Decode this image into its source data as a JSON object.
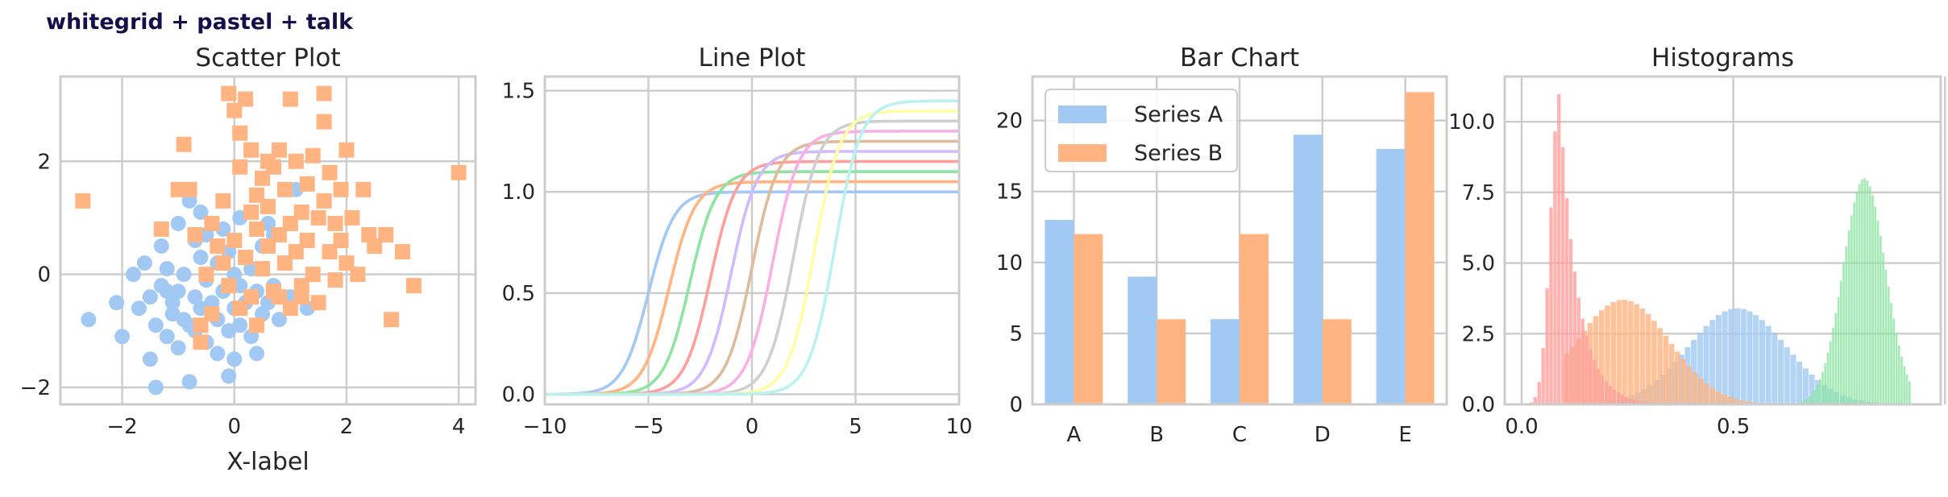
{
  "figure": {
    "suptitle": "whitegrid + pastel + talk",
    "colors": {
      "blue": "#a1c9f4",
      "orange": "#ffb482",
      "green": "#8de5a1",
      "red": "#ff9f9b",
      "purple": "#d0bbff",
      "brown": "#debb9b",
      "pink": "#fab0e4",
      "gray": "#cfcfcf",
      "yellow": "#fffea3",
      "cyan": "#b9f2f0"
    }
  },
  "chart_data": [
    {
      "type": "scatter",
      "title": "Scatter Plot",
      "xlabel": "X-label",
      "ylabel": "",
      "xlim": [
        -3.1,
        4.3
      ],
      "ylim": [
        -2.3,
        3.5
      ],
      "xticks": [
        -2,
        0,
        2,
        4
      ],
      "yticks": [
        -2,
        0,
        2
      ],
      "grid": true,
      "series": [
        {
          "marker": "circle",
          "color": "#a1c9f4",
          "points": [
            [
              -2.6,
              -0.8
            ],
            [
              -2.1,
              -0.5
            ],
            [
              -2.0,
              -1.1
            ],
            [
              -1.8,
              0.0
            ],
            [
              -1.7,
              -0.6
            ],
            [
              -1.6,
              0.2
            ],
            [
              -1.5,
              -1.5
            ],
            [
              -1.5,
              -0.4
            ],
            [
              -1.4,
              -2.0
            ],
            [
              -1.4,
              -0.9
            ],
            [
              -1.3,
              0.5
            ],
            [
              -1.3,
              -0.2
            ],
            [
              -1.2,
              -1.1
            ],
            [
              -1.2,
              0.1
            ],
            [
              -1.1,
              -0.5
            ],
            [
              -1.1,
              -0.7
            ],
            [
              -1.0,
              0.9
            ],
            [
              -1.0,
              -1.3
            ],
            [
              -1.0,
              -0.3
            ],
            [
              -0.9,
              0.0
            ],
            [
              -0.9,
              -0.8
            ],
            [
              -0.8,
              -1.9
            ],
            [
              -0.8,
              -0.9
            ],
            [
              -0.8,
              1.3
            ],
            [
              -0.7,
              0.6
            ],
            [
              -0.7,
              -0.4
            ],
            [
              -0.7,
              -1.0
            ],
            [
              -0.6,
              1.1
            ],
            [
              -0.6,
              0.3
            ],
            [
              -0.6,
              -0.6
            ],
            [
              -0.5,
              -0.1
            ],
            [
              -0.5,
              -1.2
            ],
            [
              -0.5,
              0.7
            ],
            [
              -0.4,
              -0.5
            ],
            [
              -0.3,
              -0.8
            ],
            [
              -0.3,
              0.2
            ],
            [
              -0.3,
              -1.4
            ],
            [
              -0.2,
              0.8
            ],
            [
              -0.2,
              -0.3
            ],
            [
              -0.1,
              -1.0
            ],
            [
              -0.1,
              0.4
            ],
            [
              0.0,
              -0.6
            ],
            [
              0.0,
              0.0
            ],
            [
              0.0,
              -1.5
            ],
            [
              0.1,
              -0.2
            ],
            [
              0.1,
              1.0
            ],
            [
              0.1,
              -0.9
            ],
            [
              0.2,
              -0.5
            ],
            [
              0.2,
              0.3
            ],
            [
              0.3,
              -1.1
            ],
            [
              0.3,
              0.1
            ],
            [
              0.4,
              -0.3
            ],
            [
              0.4,
              -1.4
            ],
            [
              0.5,
              -0.7
            ],
            [
              0.5,
              0.5
            ],
            [
              0.6,
              -0.5
            ],
            [
              0.7,
              -0.2
            ],
            [
              0.7,
              0.7
            ],
            [
              0.8,
              -0.8
            ],
            [
              0.9,
              0.2
            ],
            [
              1.0,
              -0.4
            ],
            [
              1.1,
              1.5
            ],
            [
              1.3,
              -0.6
            ],
            [
              1.4,
              0.0
            ],
            [
              -0.1,
              -1.8
            ],
            [
              0.6,
              0.9
            ],
            [
              -1.2,
              -0.3
            ]
          ]
        },
        {
          "marker": "square",
          "color": "#ffb482",
          "points": [
            [
              -2.7,
              1.3
            ],
            [
              -1.3,
              0.8
            ],
            [
              -1.0,
              1.5
            ],
            [
              -0.9,
              2.3
            ],
            [
              -0.8,
              1.5
            ],
            [
              -0.7,
              0.7
            ],
            [
              -0.6,
              -0.9
            ],
            [
              -0.6,
              -1.2
            ],
            [
              -0.5,
              0.0
            ],
            [
              -0.4,
              0.9
            ],
            [
              -0.3,
              0.5
            ],
            [
              -0.2,
              0.2
            ],
            [
              -0.2,
              1.3
            ],
            [
              -0.1,
              3.2
            ],
            [
              -0.1,
              -0.2
            ],
            [
              0.0,
              2.9
            ],
            [
              0.0,
              0.6
            ],
            [
              0.1,
              2.5
            ],
            [
              0.1,
              1.9
            ],
            [
              0.1,
              -0.6
            ],
            [
              0.2,
              3.1
            ],
            [
              0.2,
              0.3
            ],
            [
              0.3,
              1.1
            ],
            [
              0.3,
              2.2
            ],
            [
              0.3,
              -0.4
            ],
            [
              0.4,
              0.8
            ],
            [
              0.4,
              1.4
            ],
            [
              0.4,
              -0.9
            ],
            [
              0.5,
              1.7
            ],
            [
              0.5,
              0.1
            ],
            [
              0.6,
              2.0
            ],
            [
              0.6,
              0.5
            ],
            [
              0.6,
              1.2
            ],
            [
              0.7,
              -0.3
            ],
            [
              0.7,
              1.9
            ],
            [
              0.8,
              0.7
            ],
            [
              0.8,
              2.2
            ],
            [
              0.9,
              0.2
            ],
            [
              0.9,
              1.5
            ],
            [
              1.0,
              -0.6
            ],
            [
              1.0,
              0.9
            ],
            [
              1.0,
              3.1
            ],
            [
              1.1,
              0.4
            ],
            [
              1.1,
              2.0
            ],
            [
              1.2,
              1.1
            ],
            [
              1.2,
              -0.2
            ],
            [
              1.3,
              1.6
            ],
            [
              1.3,
              0.6
            ],
            [
              1.4,
              2.1
            ],
            [
              1.4,
              0.0
            ],
            [
              1.5,
              1.0
            ],
            [
              1.5,
              -0.5
            ],
            [
              1.6,
              3.2
            ],
            [
              1.6,
              2.7
            ],
            [
              1.6,
              1.3
            ],
            [
              1.7,
              0.4
            ],
            [
              1.7,
              1.8
            ],
            [
              1.8,
              0.9
            ],
            [
              1.8,
              -0.1
            ],
            [
              1.9,
              1.5
            ],
            [
              1.9,
              0.6
            ],
            [
              2.0,
              2.2
            ],
            [
              2.0,
              0.2
            ],
            [
              2.1,
              1.0
            ],
            [
              2.2,
              0.0
            ],
            [
              2.3,
              1.5
            ],
            [
              2.4,
              0.7
            ],
            [
              2.5,
              0.5
            ],
            [
              2.7,
              0.7
            ],
            [
              2.8,
              -0.8
            ],
            [
              3.0,
              0.4
            ],
            [
              3.2,
              -0.2
            ],
            [
              4.0,
              1.8
            ],
            [
              -0.4,
              -0.7
            ],
            [
              0.8,
              -0.4
            ],
            [
              1.2,
              -0.4
            ]
          ]
        }
      ]
    },
    {
      "type": "line",
      "title": "Line Plot",
      "xlabel": "",
      "ylabel": "",
      "xlim": [
        -10,
        10
      ],
      "ylim": [
        -0.05,
        1.57
      ],
      "xticks": [
        -10,
        -5,
        0,
        5,
        10
      ],
      "yticks": [
        0.0,
        0.5,
        1.0,
        1.5
      ],
      "grid": true,
      "series": [
        {
          "center": -5,
          "plateau": 1.0,
          "color": "#a1c9f4"
        },
        {
          "center": -4,
          "plateau": 1.05,
          "color": "#ffb482"
        },
        {
          "center": -3,
          "plateau": 1.1,
          "color": "#8de5a1"
        },
        {
          "center": -2,
          "plateau": 1.15,
          "color": "#ff9f9b"
        },
        {
          "center": -1,
          "plateau": 1.2,
          "color": "#d0bbff"
        },
        {
          "center": 0,
          "plateau": 1.25,
          "color": "#debb9b"
        },
        {
          "center": 1,
          "plateau": 1.3,
          "color": "#fab0e4"
        },
        {
          "center": 2,
          "plateau": 1.35,
          "color": "#cfcfcf"
        },
        {
          "center": 3,
          "plateau": 1.4,
          "color": "#fffea3"
        },
        {
          "center": 4,
          "plateau": 1.45,
          "color": "#b9f2f0"
        }
      ]
    },
    {
      "type": "bar",
      "title": "Bar Chart",
      "xlabel": "",
      "ylabel": "",
      "categories": [
        "A",
        "B",
        "C",
        "D",
        "E"
      ],
      "ylim": [
        0,
        23.1
      ],
      "yticks": [
        0,
        5,
        10,
        15,
        20
      ],
      "grid": true,
      "legend": "top-left",
      "series": [
        {
          "name": "Series A",
          "values": [
            13,
            9,
            6,
            19,
            18
          ],
          "color": "#a1c9f4"
        },
        {
          "name": "Series B",
          "values": [
            12,
            6,
            12,
            6,
            22
          ],
          "color": "#ffb482"
        }
      ]
    },
    {
      "type": "histogram",
      "title": "Histograms",
      "xlabel": "",
      "ylabel": "",
      "xlim": [
        -0.04,
        0.99
      ],
      "ylim": [
        0,
        11.6
      ],
      "xticks": [
        0.0,
        0.5
      ],
      "xtick_labels": [
        "0.0",
        "0.5"
      ],
      "yticks": [
        0.0,
        2.5,
        5.0,
        7.5,
        10.0
      ],
      "ytick_labels": [
        "0.0",
        "2.5",
        "5.0",
        "7.5",
        "10.0"
      ],
      "grid": true,
      "series": [
        {
          "peak_x": 0.51,
          "peak_density": 3.4,
          "spread": 0.115,
          "range": [
            0.18,
            0.84
          ],
          "color": "#a1c9f4"
        },
        {
          "peak_x": 0.24,
          "peak_density": 3.7,
          "spread": 0.11,
          "range": [
            0.1,
            0.72
          ],
          "color": "#ffb482"
        },
        {
          "peak_x": 0.81,
          "peak_density": 8.0,
          "spread": 0.05,
          "range": [
            0.64,
            0.92
          ],
          "color": "#8de5a1"
        },
        {
          "peak_x": 0.09,
          "peak_density": 11.0,
          "spread": 0.035,
          "range": [
            0.0,
            0.42
          ],
          "color": "#ff9f9b"
        }
      ]
    }
  ]
}
